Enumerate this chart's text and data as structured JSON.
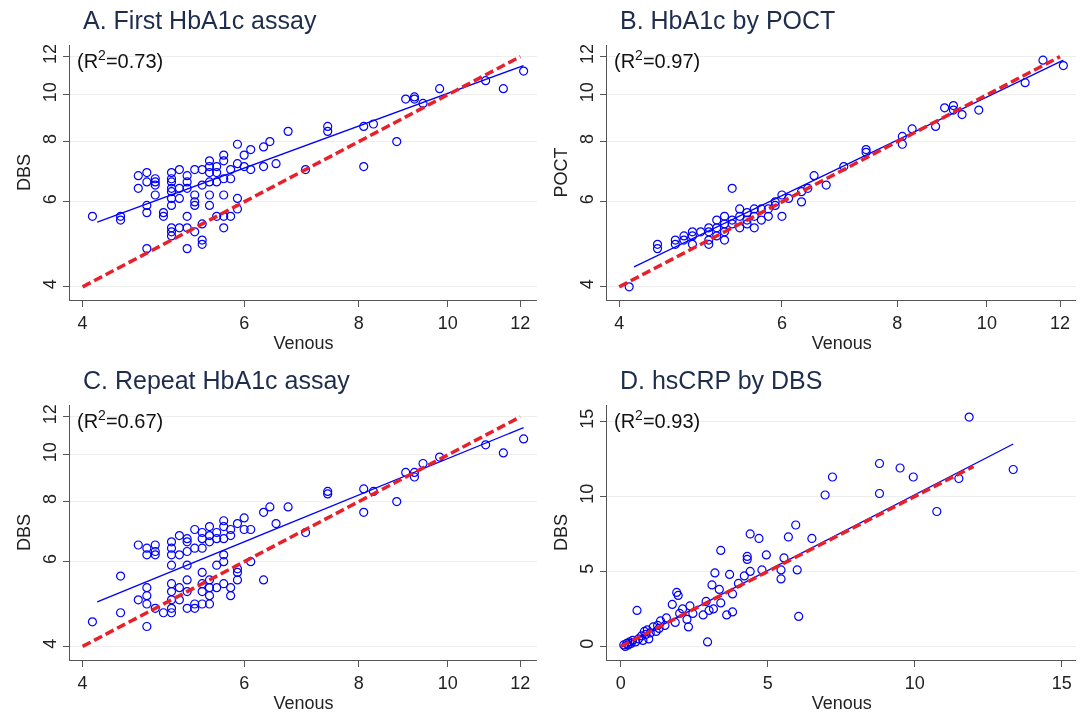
{
  "chart_data": [
    {
      "type": "scatter",
      "title": "A. First HbA1c assay",
      "xlabel": "Venous",
      "ylabel": "DBS",
      "annotations": [
        "(R$^{2}$=0.73)"
      ],
      "log": "xy",
      "xlim": [
        3.88,
        12.5
      ],
      "ylim": [
        3.75,
        12.7
      ],
      "xticks": [
        4,
        6,
        8,
        10,
        12
      ],
      "yticks": [
        4,
        6,
        8,
        10,
        12
      ],
      "grid": "y",
      "series": [
        {
          "color": "#0000ff",
          "marker": "circle",
          "x": [
            4.1,
            4.4,
            4.4,
            4.6,
            4.6,
            4.7,
            4.7,
            4.7,
            4.7,
            4.7,
            4.8,
            4.8,
            4.8,
            4.8,
            4.9,
            4.9,
            5.0,
            5.0,
            5.0,
            5.0,
            5.0,
            5.0,
            5.0,
            5.0,
            5.0,
            5.0,
            5.1,
            5.1,
            5.1,
            5.1,
            5.2,
            5.2,
            5.2,
            5.2,
            5.2,
            5.2,
            5.3,
            5.3,
            5.3,
            5.3,
            5.3,
            5.4,
            5.4,
            5.4,
            5.4,
            5.4,
            5.5,
            5.5,
            5.5,
            5.5,
            5.5,
            5.5,
            5.6,
            5.6,
            5.6,
            5.6,
            5.7,
            5.7,
            5.7,
            5.7,
            5.7,
            5.7,
            5.8,
            5.8,
            5.8,
            5.9,
            5.9,
            5.9,
            5.9,
            6.0,
            6.0,
            6.1,
            6.1,
            6.3,
            6.3,
            6.4,
            6.5,
            6.7,
            7.0,
            7.4,
            7.4,
            8.1,
            8.1,
            8.3,
            8.8,
            9.0,
            9.2,
            9.2,
            9.4,
            9.8,
            11.0,
            11.5,
            12.1
          ],
          "values": [
            5.6,
            5.6,
            5.5,
            6.8,
            6.4,
            6.9,
            6.6,
            5.9,
            5.7,
            4.8,
            6.7,
            6.6,
            6.5,
            6.2,
            5.7,
            5.6,
            6.9,
            6.7,
            6.6,
            6.4,
            6.3,
            6.1,
            5.9,
            5.3,
            5.2,
            5.1,
            7.0,
            6.4,
            6.1,
            5.3,
            6.8,
            6.6,
            6.4,
            5.6,
            5.3,
            4.8,
            7.0,
            6.2,
            6.0,
            5.9,
            5.2,
            7.0,
            6.5,
            5.4,
            5.0,
            4.9,
            7.3,
            7.1,
            6.9,
            6.6,
            6.2,
            5.9,
            7.1,
            6.9,
            6.6,
            5.6,
            7.5,
            7.3,
            6.7,
            6.2,
            5.6,
            5.3,
            7.0,
            6.7,
            5.6,
            7.9,
            7.2,
            6.1,
            5.8,
            7.5,
            7.1,
            7.7,
            7.0,
            7.8,
            7.1,
            8.0,
            7.2,
            8.4,
            7.0,
            8.6,
            8.4,
            8.6,
            7.1,
            8.7,
            8.0,
            9.8,
            9.9,
            9.8,
            9.6,
            10.3,
            10.7,
            10.3,
            11.2
          ]
        },
        {
          "type": "line",
          "color": "#0000ff",
          "x": [
            4.15,
            12.1
          ],
          "values": [
            5.45,
            11.5
          ]
        },
        {
          "type": "line",
          "color": "#e8202a",
          "line_style": "dashed",
          "x": [
            4,
            12
          ],
          "values": [
            4,
            12
          ]
        }
      ]
    },
    {
      "type": "scatter",
      "title": "B. HbA1c by POCT",
      "xlabel": "Venous",
      "ylabel": "POCT",
      "annotations": [
        "(R$^{2}$=0.97)"
      ],
      "log": "xy",
      "xlim": [
        3.88,
        12.5
      ],
      "ylim": [
        3.75,
        12.7
      ],
      "xticks": [
        4,
        6,
        8,
        10,
        12
      ],
      "yticks": [
        4,
        6,
        8,
        10,
        12
      ],
      "grid": "y",
      "series": [
        {
          "color": "#0000ff",
          "marker": "circle",
          "x": [
            4.1,
            4.4,
            4.4,
            4.6,
            4.6,
            4.7,
            4.7,
            4.8,
            4.8,
            4.8,
            4.9,
            5.0,
            5.0,
            5.0,
            5.0,
            5.1,
            5.1,
            5.1,
            5.2,
            5.2,
            5.2,
            5.2,
            5.3,
            5.3,
            5.3,
            5.4,
            5.4,
            5.4,
            5.5,
            5.5,
            5.5,
            5.6,
            5.6,
            5.6,
            5.7,
            5.7,
            5.8,
            5.8,
            5.9,
            5.9,
            6.0,
            6.0,
            6.1,
            6.3,
            6.3,
            6.4,
            6.5,
            6.7,
            7.0,
            7.4,
            7.4,
            8.1,
            8.1,
            8.3,
            8.8,
            9.0,
            9.2,
            9.2,
            9.4,
            9.8,
            11.0,
            11.5,
            12.1
          ],
          "values": [
            4.0,
            4.9,
            4.8,
            5.0,
            4.9,
            5.1,
            5.0,
            5.2,
            5.1,
            4.9,
            5.2,
            5.3,
            5.2,
            5.0,
            4.9,
            5.5,
            5.3,
            5.1,
            5.6,
            5.4,
            5.2,
            5.0,
            6.4,
            5.5,
            5.4,
            5.8,
            5.6,
            5.3,
            5.7,
            5.5,
            5.4,
            5.8,
            5.6,
            5.3,
            5.8,
            5.5,
            5.8,
            5.6,
            6.0,
            5.9,
            6.2,
            5.6,
            6.1,
            6.0,
            6.3,
            6.4,
            6.8,
            6.5,
            7.1,
            7.7,
            7.6,
            8.2,
            7.9,
            8.5,
            8.6,
            9.4,
            9.5,
            9.3,
            9.1,
            9.3,
            10.6,
            11.8,
            11.5
          ]
        },
        {
          "type": "line",
          "color": "#0000ff",
          "x": [
            4.15,
            12.1
          ],
          "values": [
            4.4,
            11.8
          ]
        },
        {
          "type": "line",
          "color": "#e8202a",
          "line_style": "dashed",
          "x": [
            4,
            12
          ],
          "values": [
            4,
            12
          ]
        }
      ]
    },
    {
      "type": "scatter",
      "title": "C. Repeat HbA1c assay",
      "xlabel": "Venous",
      "ylabel": "DBS",
      "annotations": [
        "(R$^{2}$=0.67)"
      ],
      "log": "xy",
      "xlim": [
        3.88,
        12.5
      ],
      "ylim": [
        3.75,
        12.7
      ],
      "xticks": [
        4,
        6,
        8,
        10,
        12
      ],
      "yticks": [
        4,
        6,
        8,
        10,
        12
      ],
      "grid": "y",
      "series": [
        {
          "color": "#0000ff",
          "marker": "circle",
          "x": [
            4.1,
            4.4,
            4.4,
            4.6,
            4.6,
            4.7,
            4.7,
            4.7,
            4.7,
            4.7,
            4.7,
            4.8,
            4.8,
            4.8,
            4.8,
            4.9,
            5.0,
            5.0,
            5.0,
            5.0,
            5.0,
            5.0,
            5.0,
            5.0,
            5.0,
            5.1,
            5.1,
            5.1,
            5.1,
            5.2,
            5.2,
            5.2,
            5.2,
            5.2,
            5.2,
            5.2,
            5.3,
            5.3,
            5.3,
            5.3,
            5.4,
            5.4,
            5.4,
            5.4,
            5.4,
            5.4,
            5.4,
            5.5,
            5.5,
            5.5,
            5.5,
            5.5,
            5.5,
            5.5,
            5.6,
            5.6,
            5.6,
            5.6,
            5.7,
            5.7,
            5.7,
            5.7,
            5.7,
            5.7,
            5.8,
            5.8,
            5.8,
            5.8,
            5.9,
            5.9,
            5.9,
            5.9,
            6.0,
            6.0,
            6.1,
            6.1,
            6.3,
            6.3,
            6.4,
            6.5,
            6.7,
            7.0,
            7.4,
            7.4,
            8.1,
            8.1,
            8.3,
            8.8,
            9.0,
            9.2,
            9.2,
            9.4,
            9.8,
            11.0,
            11.5,
            12.1
          ],
          "values": [
            4.5,
            5.6,
            4.7,
            6.5,
            5.0,
            6.4,
            6.2,
            5.3,
            5.1,
            4.9,
            4.4,
            6.5,
            6.3,
            6.2,
            4.8,
            4.7,
            6.6,
            6.4,
            6.2,
            5.9,
            5.4,
            5.2,
            5.0,
            4.8,
            4.7,
            6.8,
            6.2,
            5.3,
            5.0,
            6.7,
            6.6,
            6.3,
            5.9,
            5.5,
            5.2,
            4.8,
            7.0,
            6.4,
            4.9,
            4.8,
            6.9,
            6.7,
            6.4,
            5.7,
            5.4,
            5.2,
            4.9,
            7.1,
            6.8,
            6.6,
            5.5,
            5.3,
            5.1,
            4.9,
            6.9,
            6.7,
            5.9,
            5.3,
            7.3,
            7.1,
            6.7,
            6.2,
            6.0,
            5.4,
            7.0,
            6.8,
            5.3,
            5.1,
            7.2,
            5.8,
            5.7,
            5.5,
            7.4,
            7.0,
            7.0,
            6.0,
            7.6,
            5.5,
            7.8,
            7.2,
            7.8,
            6.9,
            8.4,
            8.3,
            8.5,
            7.6,
            8.4,
            8.0,
            9.2,
            9.2,
            9.0,
            9.6,
            9.9,
            10.5,
            10.1,
            10.8
          ]
        },
        {
          "type": "line",
          "color": "#0000ff",
          "x": [
            4.15,
            12.1
          ],
          "values": [
            4.95,
            11.4
          ]
        },
        {
          "type": "line",
          "color": "#e8202a",
          "line_style": "dashed",
          "x": [
            4,
            12
          ],
          "values": [
            4,
            12
          ]
        }
      ]
    },
    {
      "type": "scatter",
      "title": "D. hsCRP by DBS",
      "xlabel": "Venous",
      "ylabel": "DBS",
      "annotations": [
        "(R$^{2}$=0.93)"
      ],
      "xlim": [
        -0.47,
        15.5
      ],
      "ylim": [
        -0.9,
        16.1
      ],
      "xticks": [
        0,
        5,
        10,
        15
      ],
      "yticks": [
        0,
        5,
        10,
        15
      ],
      "grid": "y",
      "series": [
        {
          "color": "#0000ff",
          "marker": "circle",
          "x": [
            0.1,
            0.15,
            0.2,
            0.25,
            0.3,
            0.35,
            0.4,
            0.5,
            0.55,
            0.6,
            0.7,
            0.75,
            0.8,
            0.85,
            0.9,
            0.95,
            1.0,
            1.1,
            1.2,
            1.25,
            1.3,
            1.35,
            1.5,
            1.55,
            1.75,
            1.85,
            1.9,
            1.95,
            2.0,
            2.1,
            2.25,
            2.3,
            2.35,
            2.45,
            2.8,
            2.9,
            2.95,
            3.0,
            3.1,
            3.15,
            3.2,
            3.35,
            3.4,
            3.4,
            3.6,
            3.7,
            3.8,
            3.8,
            4.0,
            4.2,
            4.3,
            4.3,
            4.4,
            4.4,
            4.7,
            4.8,
            4.95,
            5.45,
            5.45,
            5.55,
            5.7,
            5.95,
            6.0,
            6.05,
            6.5,
            6.95,
            7.2,
            8.8,
            8.8,
            9.5,
            9.95,
            10.75,
            11.5,
            11.85,
            13.35
          ],
          "values": [
            0.1,
            0.0,
            0.2,
            0.1,
            0.3,
            0.2,
            0.4,
            0.3,
            2.4,
            0.5,
            0.7,
            0.4,
            1.0,
            0.8,
            1.1,
            0.5,
            0.9,
            1.3,
            1.0,
            1.4,
            1.2,
            1.7,
            1.4,
            1.9,
            2.8,
            1.6,
            3.6,
            3.4,
            2.2,
            2.5,
            1.8,
            1.3,
            2.7,
            2.2,
            2.1,
            3.0,
            0.3,
            2.4,
            4.1,
            2.5,
            4.9,
            3.8,
            6.4,
            2.9,
            2.1,
            4.8,
            2.3,
            3.5,
            4.2,
            4.7,
            6.0,
            5.8,
            5.0,
            7.5,
            7.2,
            5.1,
            6.1,
            5.1,
            4.5,
            5.9,
            7.3,
            8.1,
            5.1,
            2.0,
            7.2,
            10.1,
            11.3,
            12.2,
            10.2,
            11.9,
            11.3,
            9.0,
            11.2,
            15.3,
            11.8
          ]
        },
        {
          "type": "line",
          "color": "#0000ff",
          "x": [
            0,
            13.35
          ],
          "values": [
            0,
            13.5
          ]
        },
        {
          "type": "line",
          "color": "#e8202a",
          "line_style": "dashed",
          "x": [
            0,
            12
          ],
          "values": [
            0,
            12
          ]
        }
      ]
    }
  ]
}
